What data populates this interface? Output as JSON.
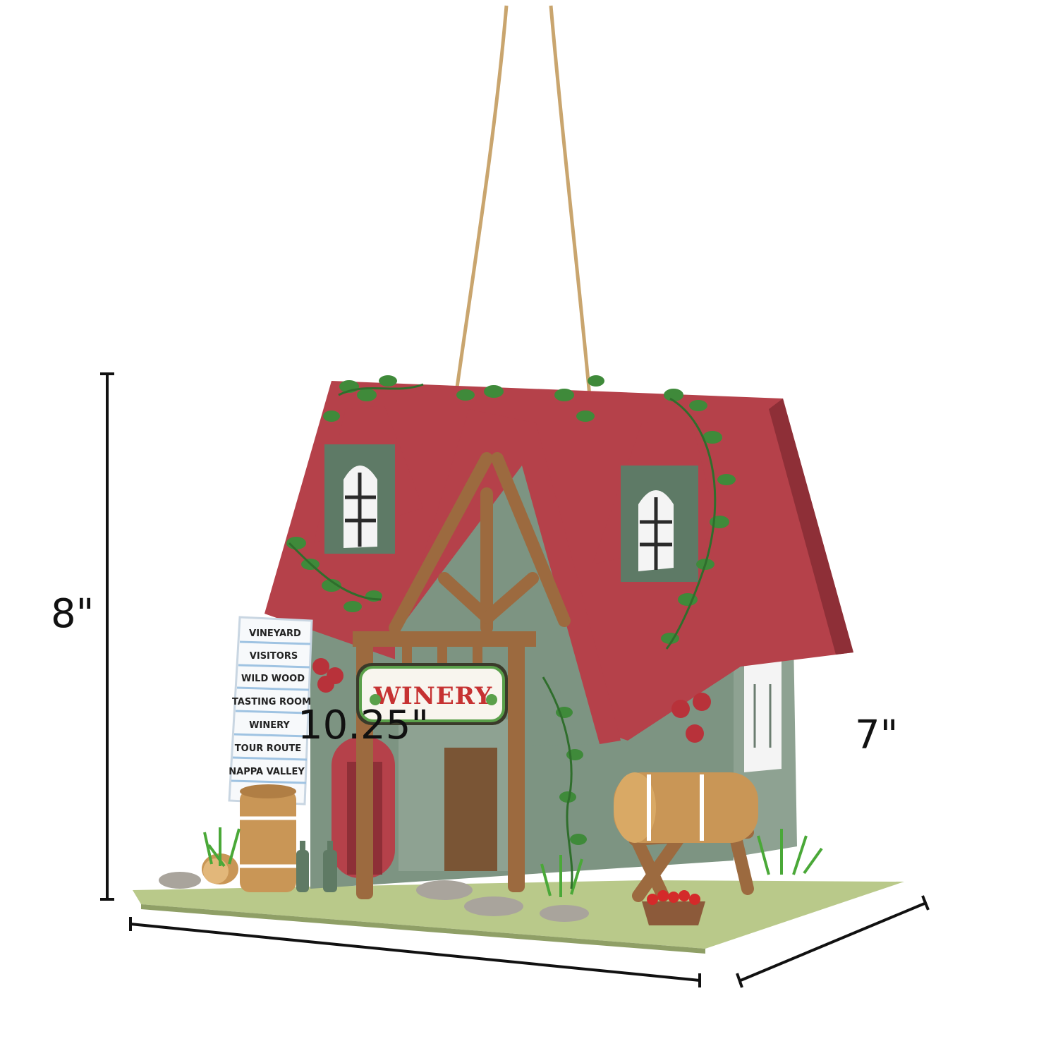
{
  "dimensions": {
    "height_label": "8\"",
    "width_label": "10.25\"",
    "depth_label": "7\""
  },
  "house_sign": {
    "text": "WINERY"
  },
  "direction_sign": {
    "items": [
      "VINEYARD",
      "VISITORS",
      "WILD WOOD",
      "TASTING ROOM",
      "WINERY",
      "TOUR ROUTE",
      "NAPPA VALLEY"
    ]
  },
  "colors": {
    "roof": "#b5414a",
    "walls": "#7d9482",
    "wood": "#9c6a3f",
    "barrel": "#c99656",
    "base": "#b9c98a",
    "twine": "#c9a56e",
    "ivy": "#3f8a3a",
    "dimension_line": "#111111"
  }
}
